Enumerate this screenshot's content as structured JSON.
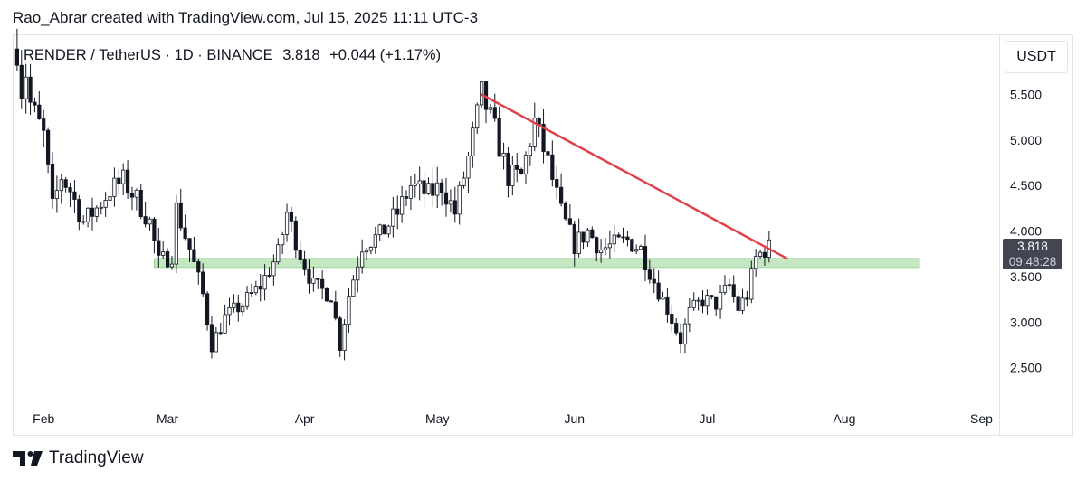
{
  "caption": "Rao_Abrar created with TradingView.com, Jul 15, 2025 11:11 UTC-3",
  "legend": {
    "symbol": "RENDER / TetherUS · 1D · BINANCE",
    "last": "3.818",
    "change": "+0.044 (+1.17%)"
  },
  "currency_button": "USDT",
  "price_tag": {
    "price": "3.818",
    "countdown": "09:48:28"
  },
  "brand": "TradingView",
  "colors": {
    "candle_up_fill": "#ffffff",
    "candle_down_fill": "#131722",
    "candle_border": "#131722",
    "trendline": "#e0424b",
    "support_zone": "#9fd89a"
  },
  "chart_data": {
    "type": "candlestick",
    "symbol": "RENDER/USDT",
    "interval": "1D",
    "x_ticks": [
      "Feb",
      "Mar",
      "Apr",
      "May",
      "Jun",
      "Jul",
      "Aug",
      "Sep"
    ],
    "y_ticks": [
      "2.500",
      "3.000",
      "3.500",
      "4.000",
      "4.500",
      "5.000",
      "5.500"
    ],
    "ylim": [
      2.14,
      6.15
    ],
    "x_range": [
      "2025-01-25",
      "2025-09-05"
    ],
    "close_path": [
      [
        "2025-01-26",
        6.0
      ],
      [
        "2025-01-27",
        5.55
      ],
      [
        "2025-01-28",
        5.75
      ],
      [
        "2025-01-29",
        5.4
      ],
      [
        "2025-02-01",
        5.05
      ],
      [
        "2025-02-03",
        4.25
      ],
      [
        "2025-02-05",
        4.6
      ],
      [
        "2025-02-07",
        4.45
      ],
      [
        "2025-02-10",
        4.1
      ],
      [
        "2025-02-13",
        4.25
      ],
      [
        "2025-02-16",
        4.45
      ],
      [
        "2025-02-19",
        4.55
      ],
      [
        "2025-02-22",
        4.35
      ],
      [
        "2025-02-25",
        4.1
      ],
      [
        "2025-02-27",
        3.65
      ],
      [
        "2025-03-02",
        3.75
      ],
      [
        "2025-03-03",
        4.25
      ],
      [
        "2025-03-06",
        3.8
      ],
      [
        "2025-03-09",
        3.3
      ],
      [
        "2025-03-11",
        2.75
      ],
      [
        "2025-03-14",
        3.05
      ],
      [
        "2025-03-18",
        3.2
      ],
      [
        "2025-03-22",
        3.4
      ],
      [
        "2025-03-26",
        3.75
      ],
      [
        "2025-03-28",
        4.2
      ],
      [
        "2025-03-31",
        3.75
      ],
      [
        "2025-04-03",
        3.4
      ],
      [
        "2025-04-07",
        3.3
      ],
      [
        "2025-04-09",
        2.75
      ],
      [
        "2025-04-11",
        3.3
      ],
      [
        "2025-04-14",
        3.85
      ],
      [
        "2025-04-18",
        3.95
      ],
      [
        "2025-04-22",
        4.2
      ],
      [
        "2025-04-25",
        4.5
      ],
      [
        "2025-04-29",
        4.4
      ],
      [
        "2025-05-02",
        4.5
      ],
      [
        "2025-05-05",
        4.2
      ],
      [
        "2025-05-08",
        4.8
      ],
      [
        "2025-05-11",
        5.5
      ],
      [
        "2025-05-14",
        5.1
      ],
      [
        "2025-05-17",
        4.6
      ],
      [
        "2025-05-20",
        4.6
      ],
      [
        "2025-05-23",
        5.2
      ],
      [
        "2025-05-26",
        4.75
      ],
      [
        "2025-05-29",
        4.2
      ],
      [
        "2025-06-01",
        3.85
      ],
      [
        "2025-06-04",
        4.0
      ],
      [
        "2025-06-07",
        3.8
      ],
      [
        "2025-06-10",
        3.85
      ],
      [
        "2025-06-13",
        3.9
      ],
      [
        "2025-06-16",
        3.8
      ],
      [
        "2025-06-19",
        3.45
      ],
      [
        "2025-06-22",
        3.15
      ],
      [
        "2025-06-25",
        2.8
      ],
      [
        "2025-06-27",
        3.1
      ],
      [
        "2025-06-30",
        3.25
      ],
      [
        "2025-07-03",
        3.2
      ],
      [
        "2025-07-06",
        3.4
      ],
      [
        "2025-07-08",
        3.15
      ],
      [
        "2025-07-10",
        3.3
      ],
      [
        "2025-07-12",
        3.7
      ],
      [
        "2025-07-14",
        3.8
      ],
      [
        "2025-07-15",
        3.818
      ]
    ],
    "last_price": 3.818,
    "annotations": [
      {
        "type": "trendline",
        "from": [
          "2025-05-11",
          5.5
        ],
        "to": [
          "2025-07-19",
          3.7
        ]
      },
      {
        "type": "support_zone",
        "x_from": "2025-02-26",
        "x_to": "2025-08-18",
        "y_from": 3.6,
        "y_to": 3.7
      }
    ],
    "grid": false
  }
}
